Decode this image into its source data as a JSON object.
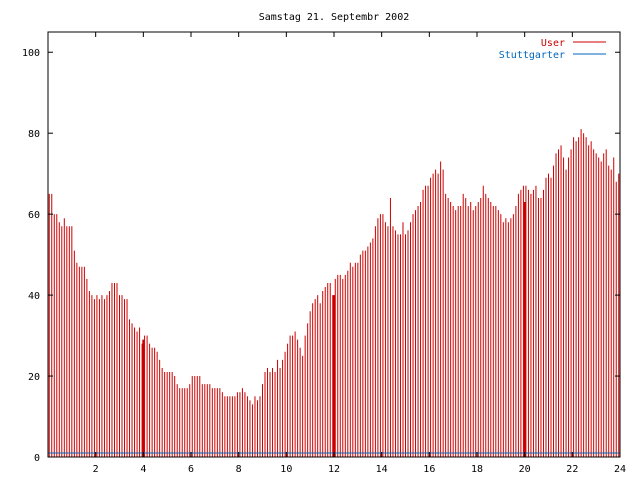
{
  "chart_data": {
    "type": "bar",
    "title": "Samstag 21. Septembr 2002",
    "xlabel": "",
    "ylabel": "",
    "xlim": [
      0,
      24
    ],
    "ylim": [
      0,
      105
    ],
    "xticks": [
      "2",
      "4",
      "6",
      "8",
      "10",
      "12",
      "14",
      "16",
      "18",
      "20",
      "22",
      "24"
    ],
    "yticks": [
      "0",
      "20",
      "40",
      "60",
      "80",
      "100"
    ],
    "grid": false,
    "legend_position": "top-right",
    "colors": {
      "user": "#cc0000",
      "stuttgarter": "#0066bb"
    },
    "series": [
      {
        "name": "User",
        "style": "impulses",
        "values": [
          65,
          65,
          60,
          60,
          58,
          57,
          59,
          57,
          57,
          57,
          51,
          48,
          47,
          47,
          47,
          44,
          41,
          40,
          39,
          40,
          39,
          40,
          39,
          40,
          41,
          43,
          43,
          43,
          40,
          40,
          39,
          39,
          34,
          33,
          32,
          31,
          32,
          28,
          30,
          30,
          28,
          27,
          27,
          26,
          24,
          22,
          21,
          21,
          21,
          21,
          20,
          18,
          17,
          17,
          17,
          17,
          18,
          20,
          20,
          20,
          20,
          18,
          18,
          18,
          18,
          17,
          17,
          17,
          17,
          16,
          15,
          15,
          15,
          15,
          15,
          16,
          16,
          17,
          16,
          15,
          14,
          13,
          15,
          14,
          15,
          18,
          21,
          22,
          21,
          22,
          21,
          24,
          22,
          24,
          26,
          28,
          30,
          30,
          31,
          29,
          27,
          25,
          30,
          33,
          36,
          38,
          39,
          40,
          38,
          41,
          42,
          43,
          43,
          40,
          44,
          45,
          45,
          44,
          45,
          46,
          48,
          47,
          48,
          48,
          50,
          51,
          51,
          52,
          53,
          54,
          57,
          59,
          60,
          60,
          58,
          57,
          64,
          57,
          56,
          55,
          55,
          58,
          55,
          56,
          58,
          60,
          61,
          62,
          63,
          66,
          67,
          67,
          69,
          70,
          71,
          70,
          73,
          71,
          65,
          64,
          63,
          62,
          61,
          62,
          62,
          65,
          64,
          62,
          63,
          61,
          62,
          63,
          64,
          67,
          65,
          64,
          63,
          62,
          62,
          61,
          60,
          58,
          59,
          58,
          59,
          60,
          62,
          65,
          66,
          67,
          67,
          66,
          65,
          66,
          67,
          64,
          64,
          66,
          69,
          70,
          69,
          72,
          75,
          76,
          77,
          74,
          71,
          74,
          76,
          79,
          78,
          79,
          81,
          80,
          79,
          77,
          78,
          76,
          75,
          74,
          73,
          75,
          76,
          72,
          71,
          74,
          68,
          70
        ]
      },
      {
        "name": "Stuttgarter",
        "style": "line",
        "points": [
          [
            0,
            1
          ],
          [
            24,
            1
          ]
        ]
      }
    ],
    "emphasized_bars": [
      {
        "x": 4.0,
        "value": 29
      },
      {
        "x": 12.0,
        "value": 40
      },
      {
        "x": 20.0,
        "value": 63
      }
    ]
  }
}
